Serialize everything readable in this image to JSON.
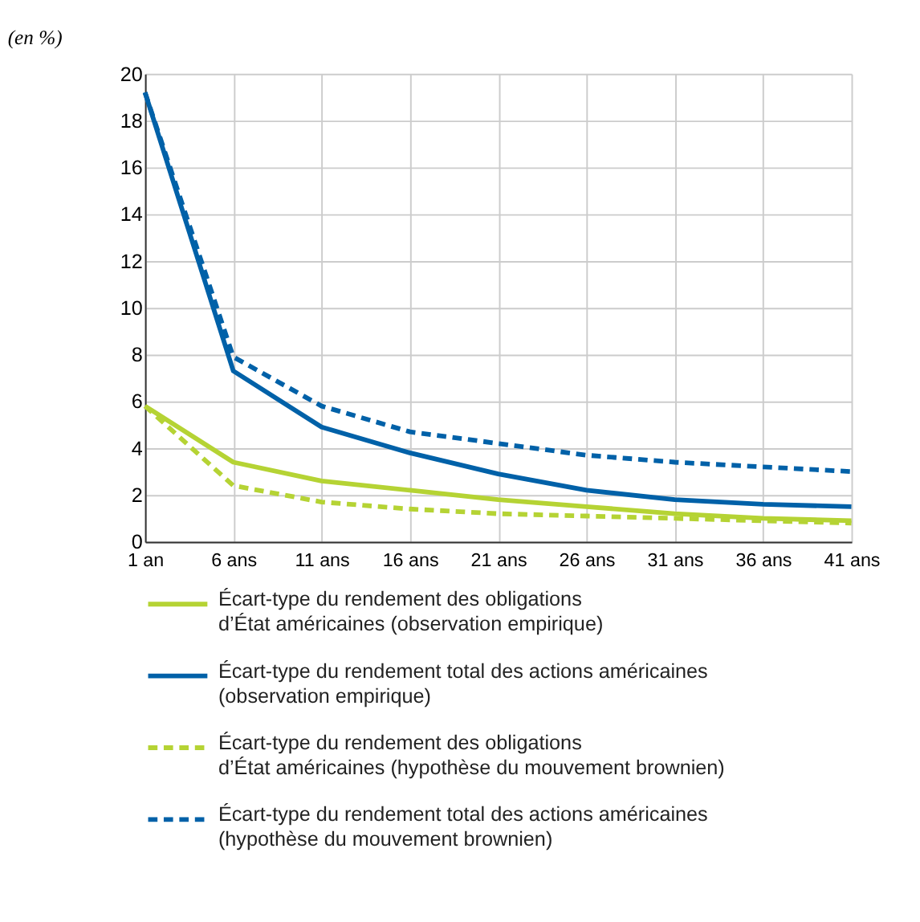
{
  "chart_data": {
    "type": "line",
    "ylabel": "(en %)",
    "categories": [
      "1 an",
      "6 ans",
      "11 ans",
      "16 ans",
      "21 ans",
      "26 ans",
      "31 ans",
      "36 ans",
      "41 ans"
    ],
    "series": [
      {
        "name": "Écart-type du rendement des obligations\nd’État américaines (observation empirique)",
        "color": "#b5d334",
        "line_style": "solid",
        "values": [
          5.8,
          3.4,
          2.6,
          2.2,
          1.8,
          1.5,
          1.2,
          1.0,
          0.9
        ]
      },
      {
        "name": "Écart-type du rendement total des actions américaines\n(observation empirique)",
        "color": "#0061a8",
        "line_style": "solid",
        "values": [
          19.2,
          7.3,
          4.9,
          3.8,
          2.9,
          2.2,
          1.8,
          1.6,
          1.5
        ]
      },
      {
        "name": "Écart-type du rendement des obligations\nd’État américaines (hypothèse du mouvement brownien)",
        "color": "#b5d334",
        "line_style": "dashed",
        "values": [
          5.8,
          2.4,
          1.7,
          1.4,
          1.2,
          1.1,
          1.0,
          0.9,
          0.8
        ]
      },
      {
        "name": "Écart-type du rendement total des actions américaines\n(hypothèse du mouvement brownien)",
        "color": "#0061a8",
        "line_style": "dashed",
        "values": [
          19.2,
          7.9,
          5.8,
          4.7,
          4.2,
          3.7,
          3.4,
          3.2,
          3.0
        ]
      }
    ],
    "ylim": [
      0,
      20
    ],
    "yticks": [
      0,
      2,
      4,
      6,
      8,
      10,
      12,
      14,
      16,
      18,
      20
    ],
    "grid": true,
    "legend": "bottom"
  }
}
